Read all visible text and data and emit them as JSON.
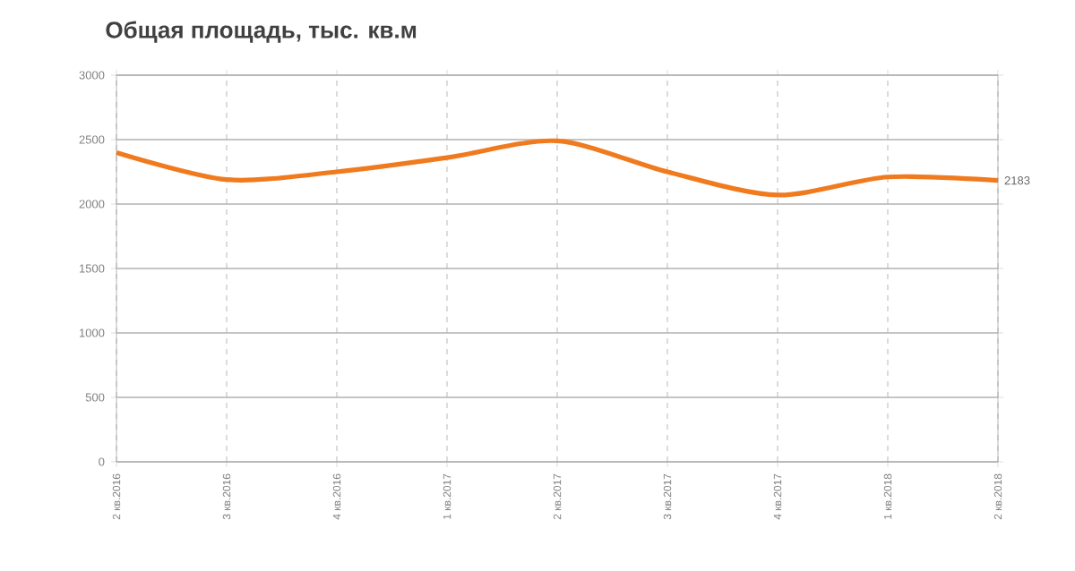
{
  "chart_data": {
    "type": "line",
    "title": "Общая площадь, тыс. кв.м",
    "categories": [
      "2 кв.2016",
      "3 кв.2016",
      "4 кв.2016",
      "1 кв.2017",
      "2 кв.2017",
      "3 кв.2017",
      "4 кв.2017",
      "1 кв.2018",
      "2 кв.2018"
    ],
    "series": [
      {
        "color": "#f07a1e",
        "values": [
          2400,
          2190,
          2250,
          2360,
          2490,
          2250,
          2070,
          2210,
          2183
        ],
        "value_labels": [
          null,
          null,
          null,
          null,
          null,
          null,
          null,
          null,
          "2183"
        ]
      }
    ],
    "ylim": [
      0,
      3000
    ],
    "yticks": [
      0,
      500,
      1000,
      1500,
      2000,
      2500,
      3000
    ],
    "grid": true,
    "marker": "none",
    "line_style": "solid"
  }
}
